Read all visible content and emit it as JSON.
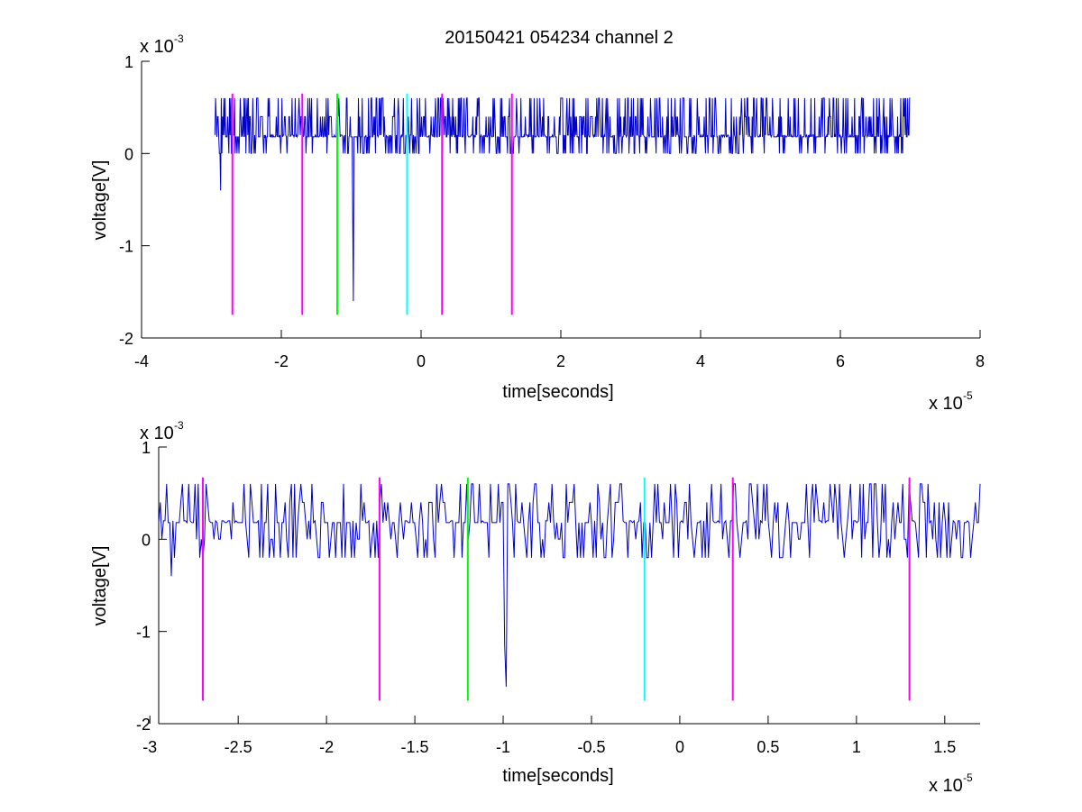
{
  "figure": {
    "title": "20150421 054234 channel 2"
  },
  "chart_data": [
    {
      "type": "line",
      "title": "20150421 054234 channel 2",
      "xlabel": "time[seconds]",
      "ylabel": "voltage[V]",
      "x_exponent": {
        "base": "x 10",
        "power": "-5"
      },
      "y_exponent": {
        "base": "x 10",
        "power": "-3"
      },
      "xlim": [
        -4,
        8
      ],
      "ylim": [
        -2,
        1
      ],
      "xticks": [
        -4,
        -2,
        0,
        2,
        4,
        6,
        8
      ],
      "xtick_labels": [
        "-4",
        "-2",
        "0",
        "2",
        "4",
        "6",
        "8"
      ],
      "yticks": [
        1,
        0,
        -1,
        -2
      ],
      "ytick_labels": [
        "1",
        "0",
        "-1",
        "-2"
      ],
      "grid": false,
      "signal": {
        "color": "#0000cc",
        "x_range": [
          -2.95,
          7.0
        ],
        "baseline": 0.18,
        "noise_levels": [
          0.0,
          0.2,
          0.4,
          0.6
        ],
        "negative_spikes": [
          {
            "x": -2.87,
            "y": -0.4
          },
          {
            "x": -0.97,
            "y": -1.6
          },
          {
            "x": -0.98,
            "y": -0.7
          }
        ]
      },
      "markers": [
        {
          "x": -2.7,
          "y_range": [
            -1.75,
            0.65
          ],
          "color": "#ff00ff"
        },
        {
          "x": -1.7,
          "y_range": [
            -1.75,
            0.65
          ],
          "color": "#ff00ff"
        },
        {
          "x": -1.2,
          "y_range": [
            -1.75,
            0.65
          ],
          "color": "#00ff00"
        },
        {
          "x": -0.2,
          "y_range": [
            -1.75,
            0.65
          ],
          "color": "#00ffff"
        },
        {
          "x": 0.3,
          "y_range": [
            -1.75,
            0.65
          ],
          "color": "#ff00ff"
        },
        {
          "x": 1.3,
          "y_range": [
            -1.75,
            0.65
          ],
          "color": "#ff00ff"
        }
      ]
    },
    {
      "type": "line",
      "title": "",
      "xlabel": "time[seconds]",
      "ylabel": "voltage[V]",
      "x_exponent": {
        "base": "x 10",
        "power": "-5"
      },
      "y_exponent": {
        "base": "x 10",
        "power": "-3"
      },
      "xlim": [
        -2.95,
        1.7
      ],
      "ylim": [
        -2,
        1
      ],
      "xticks": [
        -3,
        -2.5,
        -2,
        -1.5,
        -1,
        -0.5,
        0,
        0.5,
        1,
        1.5
      ],
      "xtick_labels": [
        "-3",
        "-2.5",
        "-2",
        "-1.5",
        "-1",
        "-0.5",
        "0",
        "0.5",
        "1",
        "1.5"
      ],
      "yticks": [
        1,
        0,
        -1,
        -2
      ],
      "ytick_labels": [
        "1",
        "0",
        "-1",
        "-2"
      ],
      "grid": false,
      "signal": {
        "color": "#0000cc",
        "x_range": [
          -2.95,
          1.7
        ],
        "baseline": 0.18,
        "noise_levels": [
          -0.2,
          0.0,
          0.2,
          0.4,
          0.6
        ],
        "negative_spikes": [
          {
            "x": -2.88,
            "y": -0.4
          },
          {
            "x": -0.98,
            "y": -1.6
          },
          {
            "x": -0.99,
            "y": -1.15
          }
        ]
      },
      "markers": [
        {
          "x": -2.7,
          "y_range": [
            -1.75,
            0.67
          ],
          "color": "#ff00ff"
        },
        {
          "x": -1.7,
          "y_range": [
            -1.75,
            0.67
          ],
          "color": "#ff00ff"
        },
        {
          "x": -1.2,
          "y_range": [
            -1.75,
            0.67
          ],
          "color": "#00ff00"
        },
        {
          "x": -0.2,
          "y_range": [
            -1.75,
            0.67
          ],
          "color": "#00ffff"
        },
        {
          "x": 0.3,
          "y_range": [
            -1.75,
            0.67
          ],
          "color": "#ff00ff"
        },
        {
          "x": 1.3,
          "y_range": [
            -1.75,
            0.67
          ],
          "color": "#ff00ff"
        }
      ]
    }
  ]
}
